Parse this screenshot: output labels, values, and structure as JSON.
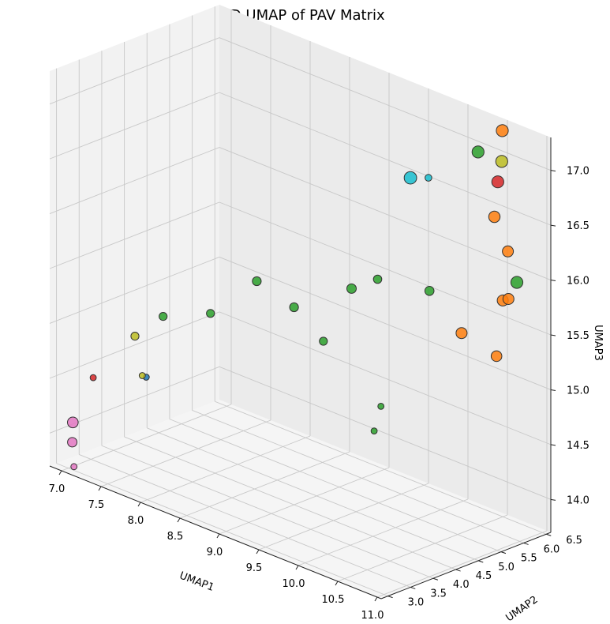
{
  "chart_data": {
    "type": "scatter",
    "title": "3D UMAP of PAV Matrix",
    "xlabel": "UMAP1",
    "ylabel": "UMAP2",
    "zlabel": "UMAP3",
    "x_ticks": [
      "7.0",
      "7.5",
      "8.0",
      "8.5",
      "9.0",
      "9.5",
      "10.0",
      "10.5",
      "11.0"
    ],
    "y_ticks": [
      "3.0",
      "3.5",
      "4.0",
      "4.5",
      "5.0",
      "5.5",
      "6.0",
      "6.5"
    ],
    "z_ticks": [
      "14.0",
      "14.5",
      "15.0",
      "15.5",
      "16.0",
      "16.5",
      "17.0"
    ],
    "xlim": [
      6.85,
      11.05
    ],
    "ylim": [
      2.85,
      6.6
    ],
    "zlim": [
      13.7,
      17.3
    ],
    "grid": true,
    "colors": {
      "blue": "#1f77b4",
      "orange": "#ff7f0e",
      "green": "#2ca02c",
      "red": "#d62728",
      "pink": "#e377c2",
      "olive": "#bcbd22",
      "cyan": "#17becf"
    },
    "points": [
      {
        "x": 7.0,
        "y": 3.1,
        "z": 14.1,
        "size": 90,
        "color": "pink"
      },
      {
        "x": 7.05,
        "y": 3.0,
        "z": 13.95,
        "size": 70,
        "color": "pink"
      },
      {
        "x": 7.1,
        "y": 2.95,
        "z": 13.75,
        "size": 30,
        "color": "pink"
      },
      {
        "x": 7.2,
        "y": 3.2,
        "z": 14.55,
        "size": 30,
        "color": "red"
      },
      {
        "x": 7.5,
        "y": 3.6,
        "z": 14.95,
        "size": 50,
        "color": "olive"
      },
      {
        "x": 7.7,
        "y": 3.5,
        "z": 14.65,
        "size": 30,
        "color": "blue"
      },
      {
        "x": 7.65,
        "y": 3.5,
        "z": 14.65,
        "size": 30,
        "color": "olive"
      },
      {
        "x": 7.8,
        "y": 3.7,
        "z": 15.2,
        "size": 50,
        "color": "green"
      },
      {
        "x": 8.4,
        "y": 3.7,
        "z": 15.4,
        "size": 50,
        "color": "green"
      },
      {
        "x": 8.7,
        "y": 4.2,
        "z": 15.7,
        "size": 60,
        "color": "green"
      },
      {
        "x": 9.0,
        "y": 4.5,
        "z": 15.5,
        "size": 60,
        "color": "green"
      },
      {
        "x": 9.2,
        "y": 4.8,
        "z": 15.2,
        "size": 50,
        "color": "green"
      },
      {
        "x": 9.5,
        "y": 4.9,
        "z": 15.75,
        "size": 70,
        "color": "green"
      },
      {
        "x": 9.6,
        "y": 5.3,
        "z": 15.8,
        "size": 55,
        "color": "green"
      },
      {
        "x": 10.2,
        "y": 5.4,
        "z": 15.85,
        "size": 65,
        "color": "green"
      },
      {
        "x": 9.9,
        "y": 4.7,
        "z": 14.6,
        "size": 30,
        "color": "green"
      },
      {
        "x": 9.9,
        "y": 4.85,
        "z": 14.8,
        "size": 30,
        "color": "green"
      },
      {
        "x": 9.5,
        "y": 6.2,
        "z": 16.55,
        "size": 120,
        "color": "cyan"
      },
      {
        "x": 9.7,
        "y": 6.25,
        "z": 16.6,
        "size": 35,
        "color": "cyan"
      },
      {
        "x": 10.3,
        "y": 6.3,
        "z": 17.0,
        "size": 110,
        "color": "green"
      },
      {
        "x": 10.55,
        "y": 6.4,
        "z": 17.25,
        "size": 110,
        "color": "orange"
      },
      {
        "x": 10.55,
        "y": 6.3,
        "z": 16.8,
        "size": 110,
        "color": "red"
      },
      {
        "x": 10.6,
        "y": 6.3,
        "z": 17.0,
        "size": 110,
        "color": "olive"
      },
      {
        "x": 10.65,
        "y": 6.05,
        "z": 16.55,
        "size": 100,
        "color": "orange"
      },
      {
        "x": 10.85,
        "y": 6.0,
        "z": 16.3,
        "size": 95,
        "color": "orange"
      },
      {
        "x": 10.9,
        "y": 5.8,
        "z": 15.9,
        "size": 95,
        "color": "orange"
      },
      {
        "x": 10.55,
        "y": 5.5,
        "z": 15.55,
        "size": 95,
        "color": "orange"
      },
      {
        "x": 11.0,
        "y": 5.75,
        "z": 15.95,
        "size": 95,
        "color": "orange"
      },
      {
        "x": 11.05,
        "y": 5.4,
        "z": 15.5,
        "size": 90,
        "color": "orange"
      },
      {
        "x": 11.05,
        "y": 5.85,
        "z": 16.1,
        "size": 110,
        "color": "green"
      }
    ]
  }
}
